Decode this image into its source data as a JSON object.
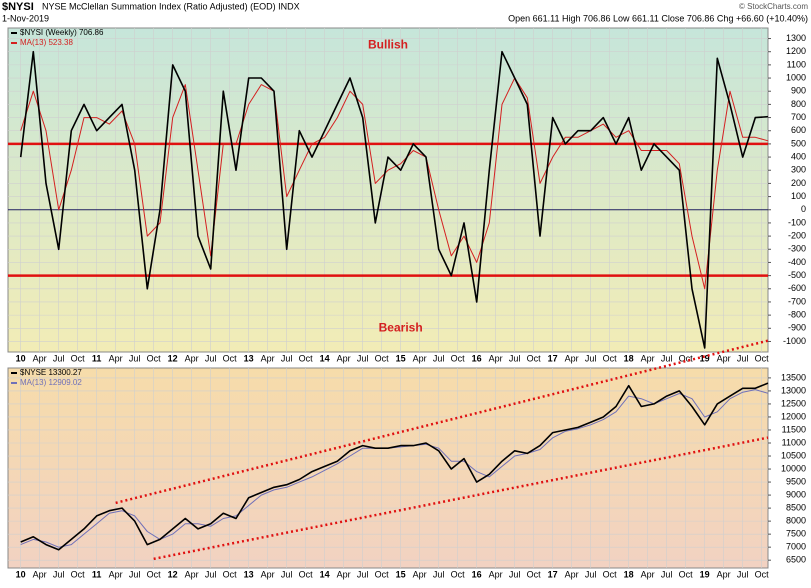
{
  "chart_data": [
    {
      "type": "line",
      "symbol": "$NYSI",
      "title": "NYSE McClellan Summation Index (Ratio Adjusted) (EOD) INDX",
      "subtitle": "1-Nov-2019",
      "quote": "Open 661.11  High 706.86  Low 661.11  Close 706.86  Chg +66.60 (+10.40%)",
      "credit": "© StockCharts.com",
      "x": [
        "2010-01",
        "2010-03",
        "2010-05",
        "2010-07",
        "2010-09",
        "2010-11",
        "2011-01",
        "2011-03",
        "2011-05",
        "2011-07",
        "2011-09",
        "2011-11",
        "2012-01",
        "2012-03",
        "2012-05",
        "2012-07",
        "2012-09",
        "2012-11",
        "2013-01",
        "2013-03",
        "2013-05",
        "2013-07",
        "2013-09",
        "2013-11",
        "2014-01",
        "2014-03",
        "2014-05",
        "2014-07",
        "2014-09",
        "2014-11",
        "2015-01",
        "2015-03",
        "2015-05",
        "2015-07",
        "2015-09",
        "2015-11",
        "2016-01",
        "2016-03",
        "2016-05",
        "2016-07",
        "2016-09",
        "2016-11",
        "2017-01",
        "2017-03",
        "2017-05",
        "2017-07",
        "2017-09",
        "2017-11",
        "2018-01",
        "2018-03",
        "2018-05",
        "2018-07",
        "2018-09",
        "2018-11",
        "2019-01",
        "2019-03",
        "2019-05",
        "2019-07",
        "2019-09",
        "2019-11"
      ],
      "series": [
        {
          "name": "$NYSI (Weekly) 706.86",
          "color": "#000000",
          "values": [
            400,
            1200,
            200,
            -300,
            600,
            800,
            600,
            700,
            800,
            300,
            -600,
            0,
            1100,
            900,
            -200,
            -450,
            900,
            300,
            1000,
            1000,
            900,
            -300,
            600,
            400,
            600,
            800,
            1000,
            700,
            -100,
            400,
            300,
            500,
            400,
            -300,
            -500,
            -100,
            -700,
            300,
            1200,
            1000,
            800,
            -200,
            700,
            500,
            600,
            600,
            700,
            500,
            700,
            300,
            500,
            400,
            300,
            -600,
            -1050,
            1150,
            800,
            400,
            700,
            706.86
          ]
        },
        {
          "name": "MA(13) 523.38",
          "color": "#d42020",
          "values": [
            600,
            900,
            600,
            0,
            300,
            700,
            700,
            650,
            750,
            500,
            -200,
            -100,
            700,
            950,
            300,
            -350,
            500,
            500,
            800,
            950,
            900,
            100,
            300,
            500,
            550,
            700,
            900,
            800,
            200,
            300,
            350,
            450,
            400,
            0,
            -350,
            -200,
            -400,
            -100,
            800,
            1000,
            850,
            200,
            400,
            550,
            550,
            600,
            650,
            550,
            600,
            450,
            450,
            450,
            350,
            -200,
            -600,
            300,
            900,
            550,
            550,
            523.38
          ]
        }
      ],
      "ylim": [
        -1080,
        1380
      ],
      "yticks": [
        -1000,
        -900,
        -800,
        -700,
        -600,
        -500,
        -400,
        -300,
        -200,
        -100,
        0,
        100,
        200,
        300,
        400,
        500,
        600,
        700,
        800,
        900,
        1000,
        1100,
        1200,
        1300
      ],
      "xlim": [
        "2009-11",
        "2019-11"
      ],
      "xticks": [
        {
          "value": "2010-01",
          "label": "10"
        },
        {
          "value": "2010-04",
          "label": "Apr"
        },
        {
          "value": "2010-07",
          "label": "Jul"
        },
        {
          "value": "2010-10",
          "label": "Oct"
        },
        {
          "value": "2011-01",
          "label": "11"
        },
        {
          "value": "2011-04",
          "label": "Apr"
        },
        {
          "value": "2011-07",
          "label": "Jul"
        },
        {
          "value": "2011-10",
          "label": "Oct"
        },
        {
          "value": "2012-01",
          "label": "12"
        },
        {
          "value": "2012-04",
          "label": "Apr"
        },
        {
          "value": "2012-07",
          "label": "Jul"
        },
        {
          "value": "2012-10",
          "label": "Oct"
        },
        {
          "value": "2013-01",
          "label": "13"
        },
        {
          "value": "2013-04",
          "label": "Apr"
        },
        {
          "value": "2013-07",
          "label": "Jul"
        },
        {
          "value": "2013-10",
          "label": "Oct"
        },
        {
          "value": "2014-01",
          "label": "14"
        },
        {
          "value": "2014-04",
          "label": "Apr"
        },
        {
          "value": "2014-07",
          "label": "Jul"
        },
        {
          "value": "2014-10",
          "label": "Oct"
        },
        {
          "value": "2015-01",
          "label": "15"
        },
        {
          "value": "2015-04",
          "label": "Apr"
        },
        {
          "value": "2015-07",
          "label": "Jul"
        },
        {
          "value": "2015-10",
          "label": "Oct"
        },
        {
          "value": "2016-01",
          "label": "16"
        },
        {
          "value": "2016-04",
          "label": "Apr"
        },
        {
          "value": "2016-07",
          "label": "Jul"
        },
        {
          "value": "2016-10",
          "label": "Oct"
        },
        {
          "value": "2017-01",
          "label": "17"
        },
        {
          "value": "2017-04",
          "label": "Apr"
        },
        {
          "value": "2017-07",
          "label": "Jul"
        },
        {
          "value": "2017-10",
          "label": "Oct"
        },
        {
          "value": "2018-01",
          "label": "18"
        },
        {
          "value": "2018-04",
          "label": "Apr"
        },
        {
          "value": "2018-07",
          "label": "Jul"
        },
        {
          "value": "2018-10",
          "label": "Oct"
        },
        {
          "value": "2019-01",
          "label": "19"
        },
        {
          "value": "2019-04",
          "label": "Apr"
        },
        {
          "value": "2019-07",
          "label": "Jul"
        },
        {
          "value": "2019-10",
          "label": "Oct"
        }
      ],
      "grid": true,
      "background": [
        "#c6e6da",
        "#f2ecb6"
      ],
      "reference_lines": [
        {
          "value": 500,
          "color": "#e01010"
        },
        {
          "value": -500,
          "color": "#e01010"
        },
        {
          "value": 0,
          "color": "#202060"
        }
      ],
      "annotations": [
        {
          "text": "Bullish",
          "x": "2014-11",
          "y": 1250,
          "color": "#d42020"
        },
        {
          "text": "Bearish",
          "x": "2015-01",
          "y": -900,
          "color": "#d42020"
        }
      ]
    },
    {
      "type": "line",
      "x": [
        "2010-01",
        "2010-03",
        "2010-05",
        "2010-07",
        "2010-09",
        "2010-11",
        "2011-01",
        "2011-03",
        "2011-05",
        "2011-07",
        "2011-09",
        "2011-11",
        "2012-01",
        "2012-03",
        "2012-05",
        "2012-07",
        "2012-09",
        "2012-11",
        "2013-01",
        "2013-03",
        "2013-05",
        "2013-07",
        "2013-09",
        "2013-11",
        "2014-01",
        "2014-03",
        "2014-05",
        "2014-07",
        "2014-09",
        "2014-11",
        "2015-01",
        "2015-03",
        "2015-05",
        "2015-07",
        "2015-09",
        "2015-11",
        "2016-01",
        "2016-03",
        "2016-05",
        "2016-07",
        "2016-09",
        "2016-11",
        "2017-01",
        "2017-03",
        "2017-05",
        "2017-07",
        "2017-09",
        "2017-11",
        "2018-01",
        "2018-03",
        "2018-05",
        "2018-07",
        "2018-09",
        "2018-11",
        "2019-01",
        "2019-03",
        "2019-05",
        "2019-07",
        "2019-09",
        "2019-11"
      ],
      "series": [
        {
          "name": "$NYSE 13300.27",
          "color": "#000000",
          "values": [
            7200,
            7400,
            7100,
            6900,
            7300,
            7700,
            8200,
            8400,
            8500,
            8000,
            7100,
            7300,
            7700,
            8100,
            7700,
            7900,
            8300,
            8100,
            8900,
            9100,
            9300,
            9400,
            9600,
            9900,
            10100,
            10300,
            10700,
            10900,
            10800,
            10800,
            10900,
            10900,
            11000,
            10700,
            10000,
            10400,
            9500,
            9800,
            10300,
            10700,
            10600,
            10900,
            11400,
            11500,
            11600,
            11800,
            12000,
            12400,
            13200,
            12400,
            12500,
            12800,
            13000,
            12400,
            11700,
            12500,
            12800,
            13100,
            13100,
            13300.27
          ]
        },
        {
          "name": "MA(13) 12909.02",
          "color": "#7070b8",
          "values": [
            7100,
            7300,
            7200,
            7000,
            7100,
            7500,
            7900,
            8300,
            8400,
            8200,
            7600,
            7300,
            7500,
            7900,
            7900,
            7800,
            8100,
            8200,
            8600,
            9000,
            9200,
            9300,
            9500,
            9700,
            9950,
            10200,
            10500,
            10800,
            10800,
            10800,
            10850,
            10900,
            10950,
            10800,
            10300,
            10300,
            9900,
            9700,
            10100,
            10500,
            10600,
            10750,
            11200,
            11450,
            11550,
            11700,
            11900,
            12200,
            12800,
            12700,
            12500,
            12700,
            12900,
            12700,
            12000,
            12200,
            12700,
            12950,
            13050,
            12909.02
          ]
        }
      ],
      "ylim": [
        6200,
        13880
      ],
      "yticks": [
        6500,
        7000,
        7500,
        8000,
        8500,
        9000,
        9500,
        10000,
        10500,
        11000,
        11500,
        12000,
        12500,
        13000,
        13500
      ],
      "xlim": [
        "2009-11",
        "2019-11"
      ],
      "xticks": [
        {
          "value": "2010-01",
          "label": "10"
        },
        {
          "value": "2010-04",
          "label": "Apr"
        },
        {
          "value": "2010-07",
          "label": "Jul"
        },
        {
          "value": "2010-10",
          "label": "Oct"
        },
        {
          "value": "2011-01",
          "label": "11"
        },
        {
          "value": "2011-04",
          "label": "Apr"
        },
        {
          "value": "2011-07",
          "label": "Jul"
        },
        {
          "value": "2011-10",
          "label": "Oct"
        },
        {
          "value": "2012-01",
          "label": "12"
        },
        {
          "value": "2012-04",
          "label": "Apr"
        },
        {
          "value": "2012-07",
          "label": "Jul"
        },
        {
          "value": "2012-10",
          "label": "Oct"
        },
        {
          "value": "2013-01",
          "label": "13"
        },
        {
          "value": "2013-04",
          "label": "Apr"
        },
        {
          "value": "2013-07",
          "label": "Jul"
        },
        {
          "value": "2013-10",
          "label": "Oct"
        },
        {
          "value": "2014-01",
          "label": "14"
        },
        {
          "value": "2014-04",
          "label": "Apr"
        },
        {
          "value": "2014-07",
          "label": "Jul"
        },
        {
          "value": "2014-10",
          "label": "Oct"
        },
        {
          "value": "2015-01",
          "label": "15"
        },
        {
          "value": "2015-04",
          "label": "Apr"
        },
        {
          "value": "2015-07",
          "label": "Jul"
        },
        {
          "value": "2015-10",
          "label": "Oct"
        },
        {
          "value": "2016-01",
          "label": "16"
        },
        {
          "value": "2016-04",
          "label": "Apr"
        },
        {
          "value": "2016-07",
          "label": "Jul"
        },
        {
          "value": "2016-10",
          "label": "Oct"
        },
        {
          "value": "2017-01",
          "label": "17"
        },
        {
          "value": "2017-04",
          "label": "Apr"
        },
        {
          "value": "2017-07",
          "label": "Jul"
        },
        {
          "value": "2017-10",
          "label": "Oct"
        },
        {
          "value": "2018-01",
          "label": "18"
        },
        {
          "value": "2018-04",
          "label": "Apr"
        },
        {
          "value": "2018-07",
          "label": "Jul"
        },
        {
          "value": "2018-10",
          "label": "Oct"
        },
        {
          "value": "2019-01",
          "label": "19"
        },
        {
          "value": "2019-04",
          "label": "Apr"
        },
        {
          "value": "2019-07",
          "label": "Jul"
        },
        {
          "value": "2019-10",
          "label": "Oct"
        }
      ],
      "grid": true,
      "background": [
        "#f6dcaa",
        "#f2d2c2"
      ],
      "trendlines": [
        {
          "from": [
            "2011-04",
            8700
          ],
          "to": [
            "2019-11",
            14930
          ],
          "color": "#e01010"
        },
        {
          "from": [
            "2011-10",
            6550
          ],
          "to": [
            "2019-11",
            11206
          ],
          "color": "#e01010"
        }
      ]
    }
  ]
}
